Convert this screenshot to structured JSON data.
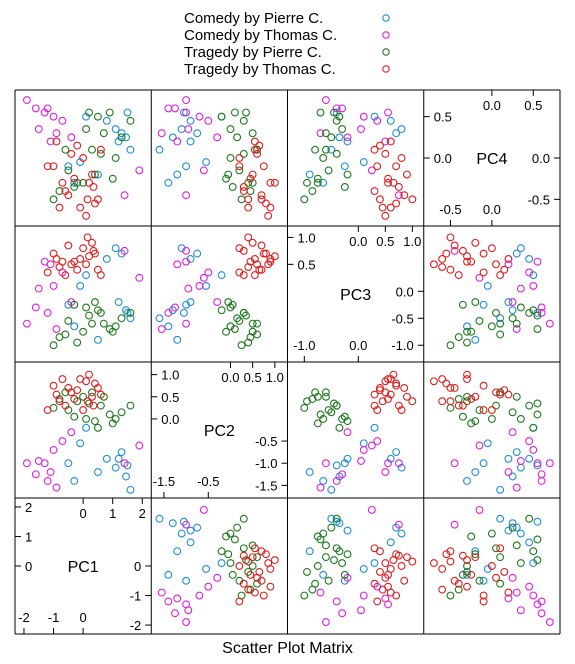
{
  "chart_data": {
    "type": "scatter",
    "xlabel": "Scatter Plot Matrix",
    "variables": [
      {
        "name": "PC1",
        "range": [
          -2.1,
          2.1
        ],
        "ticks_low": [
          -2,
          -1,
          0
        ],
        "ticks_high": [
          0,
          1,
          2
        ],
        "ticks_left": [
          0,
          1,
          2
        ],
        "ticks_right": [
          -2,
          -1,
          0
        ],
        "top_ticks": [
          2
        ],
        "bottom_ticks": [
          -2,
          -1
        ]
      },
      {
        "name": "PC2",
        "range": [
          -1.65,
          1.15
        ],
        "ticks_low": [
          -1.5,
          -0.5
        ],
        "ticks_high": [
          0.0,
          0.5,
          1.0
        ],
        "ticks_left": [
          0.0,
          0.5,
          1.0
        ],
        "ticks_right": [
          -0.5,
          -1.0,
          -1.5
        ]
      },
      {
        "name": "PC3",
        "range": [
          -1.2,
          1.1
        ],
        "ticks_low": [
          -1.0,
          0.0
        ],
        "ticks_high": [
          0.0,
          0.5,
          1.0
        ],
        "ticks_left": [
          0.5,
          1.0
        ],
        "ticks_right": [
          0.0,
          -0.5,
          -1.0
        ]
      },
      {
        "name": "PC4",
        "range": [
          -0.75,
          0.75
        ],
        "ticks_low": [
          -0.5,
          0.0
        ],
        "ticks_high": [
          0.0,
          0.5
        ],
        "ticks_left": [
          0.0,
          0.5
        ],
        "ticks_right": [
          0.0,
          -0.5
        ]
      }
    ],
    "series": [
      {
        "name": "Comedy by Pierre C.",
        "color": "#1f8fd6",
        "points": [
          [
            1.6,
            -1.6,
            -0.5,
            0.1
          ],
          [
            1.2,
            -0.9,
            -0.2,
            0.2
          ],
          [
            1.45,
            -1.3,
            -0.35,
            0.25
          ],
          [
            1.1,
            -1.1,
            0.8,
            0.35
          ],
          [
            -0.5,
            -1.0,
            -0.25,
            -0.1
          ],
          [
            0.8,
            -0.9,
            0.6,
            0.45
          ],
          [
            1.3,
            -0.75,
            0.7,
            0.3
          ],
          [
            0.1,
            -0.2,
            0.3,
            0.5
          ],
          [
            -0.3,
            -1.4,
            -0.65,
            -0.3
          ],
          [
            0.5,
            -1.2,
            -0.9,
            -0.2
          ],
          [
            1.5,
            -1.05,
            -0.4,
            0.55
          ],
          [
            -0.1,
            -0.55,
            0.1,
            -0.05
          ]
        ]
      },
      {
        "name": "Comedy by Thomas C.",
        "color": "#e020e0",
        "points": [
          [
            -1.9,
            -1.0,
            -0.6,
            0.7
          ],
          [
            -1.2,
            -1.4,
            -0.4,
            0.6
          ],
          [
            -1.5,
            -0.95,
            0.05,
            0.35
          ],
          [
            -1.0,
            -0.7,
            0.1,
            0.5
          ],
          [
            -0.7,
            -0.5,
            0.35,
            0.45
          ],
          [
            -1.6,
            -1.25,
            -0.3,
            0.6
          ],
          [
            -0.9,
            -1.55,
            -0.7,
            0.3
          ],
          [
            -1.3,
            -1.0,
            0.55,
            0.55
          ],
          [
            -0.4,
            -0.3,
            -0.2,
            0.25
          ],
          [
            -1.1,
            -1.2,
            0.5,
            0.2
          ],
          [
            1.9,
            -0.6,
            0.25,
            -0.15
          ],
          [
            1.4,
            -1.0,
            0.75,
            -0.45
          ]
        ]
      },
      {
        "name": "Tragedy by Pierre C.",
        "color": "#1e7a1e",
        "points": [
          [
            -0.2,
            0.4,
            -0.95,
            -0.3
          ],
          [
            0.3,
            0.6,
            -0.6,
            0.1
          ],
          [
            0.6,
            0.3,
            -0.4,
            0.05
          ],
          [
            0.9,
            0.1,
            -0.7,
            0.55
          ],
          [
            -0.5,
            0.2,
            -0.55,
            -0.15
          ],
          [
            0.1,
            0.0,
            -0.3,
            0.35
          ],
          [
            1.0,
            -0.1,
            -0.75,
            -0.25
          ],
          [
            1.3,
            0.15,
            -0.5,
            0.25
          ],
          [
            -0.8,
            0.45,
            -0.85,
            -0.4
          ],
          [
            0.5,
            -0.2,
            -0.35,
            0.5
          ],
          [
            -0.3,
            0.05,
            -0.25,
            -0.35
          ],
          [
            1.6,
            0.3,
            -0.4,
            0.45
          ],
          [
            0.0,
            0.5,
            -0.75,
            -0.3
          ],
          [
            -1.0,
            0.25,
            -1.0,
            -0.5
          ],
          [
            0.7,
            0.5,
            -0.6,
            0.3
          ],
          [
            0.2,
            0.35,
            -0.45,
            0.55
          ],
          [
            -0.6,
            0.6,
            -0.8,
            0.1
          ],
          [
            1.1,
            0.0,
            -0.65,
            0.0
          ],
          [
            0.4,
            -0.05,
            -0.2,
            -0.2
          ]
        ]
      },
      {
        "name": "Tragedy by Thomas C.",
        "color": "#e01e1e",
        "points": [
          [
            -0.1,
            0.9,
            0.6,
            -0.6
          ],
          [
            0.5,
            0.7,
            0.4,
            -0.5
          ],
          [
            -0.6,
            0.3,
            0.3,
            -0.4
          ],
          [
            0.3,
            0.5,
            0.9,
            -0.2
          ],
          [
            -0.4,
            0.6,
            0.5,
            0.05
          ],
          [
            0.2,
            1.0,
            0.65,
            -0.3
          ],
          [
            -0.8,
            0.4,
            0.45,
            -0.6
          ],
          [
            0.0,
            0.2,
            0.8,
            0.0
          ],
          [
            0.4,
            0.8,
            0.7,
            -0.55
          ],
          [
            -1.2,
            0.2,
            0.35,
            -0.1
          ],
          [
            -0.3,
            0.45,
            0.55,
            -0.25
          ],
          [
            0.6,
            0.55,
            0.3,
            0.1
          ],
          [
            -0.5,
            0.7,
            0.85,
            -0.45
          ],
          [
            0.1,
            0.85,
            0.5,
            -0.7
          ],
          [
            -0.9,
            0.55,
            0.6,
            0.2
          ],
          [
            0.35,
            0.3,
            0.75,
            -0.35
          ],
          [
            -0.2,
            0.65,
            0.4,
            0.15
          ],
          [
            -1.0,
            0.75,
            0.7,
            -0.1
          ],
          [
            0.15,
            0.4,
            1.0,
            -0.5
          ],
          [
            -0.7,
            0.9,
            0.55,
            -0.3
          ]
        ]
      }
    ]
  }
}
